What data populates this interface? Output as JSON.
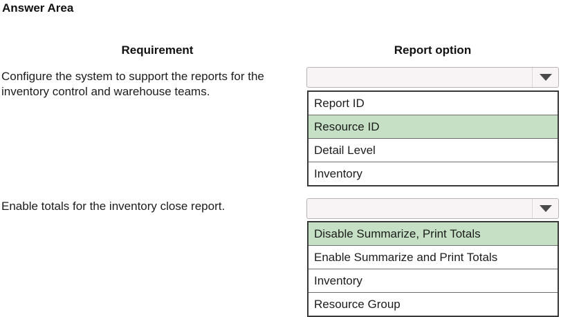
{
  "title": "Answer Area",
  "columns": {
    "requirement": "Requirement",
    "report_option": "Report option"
  },
  "rows": [
    {
      "requirement": "Configure the system to support the reports for the inventory control and warehouse teams.",
      "dropdown": {
        "selected_value": "",
        "options": [
          {
            "label": "Report ID",
            "highlighted": false
          },
          {
            "label": "Resource ID",
            "highlighted": true
          },
          {
            "label": "Detail Level",
            "highlighted": false
          },
          {
            "label": "Inventory",
            "highlighted": false
          }
        ]
      }
    },
    {
      "requirement": "Enable totals for the inventory close report.",
      "dropdown": {
        "selected_value": "",
        "options": [
          {
            "label": "Disable Summarize, Print Totals",
            "highlighted": true
          },
          {
            "label": "Enable Summarize and Print Totals",
            "highlighted": false
          },
          {
            "label": "Inventory",
            "highlighted": false
          },
          {
            "label": "Resource Group",
            "highlighted": false
          }
        ]
      }
    }
  ],
  "icons": {
    "dropdown_arrow": "caret-down-icon"
  },
  "colors": {
    "highlight": "#c5e0c4",
    "combo-bg": "#f8f3f4",
    "list-border": "#383838"
  }
}
